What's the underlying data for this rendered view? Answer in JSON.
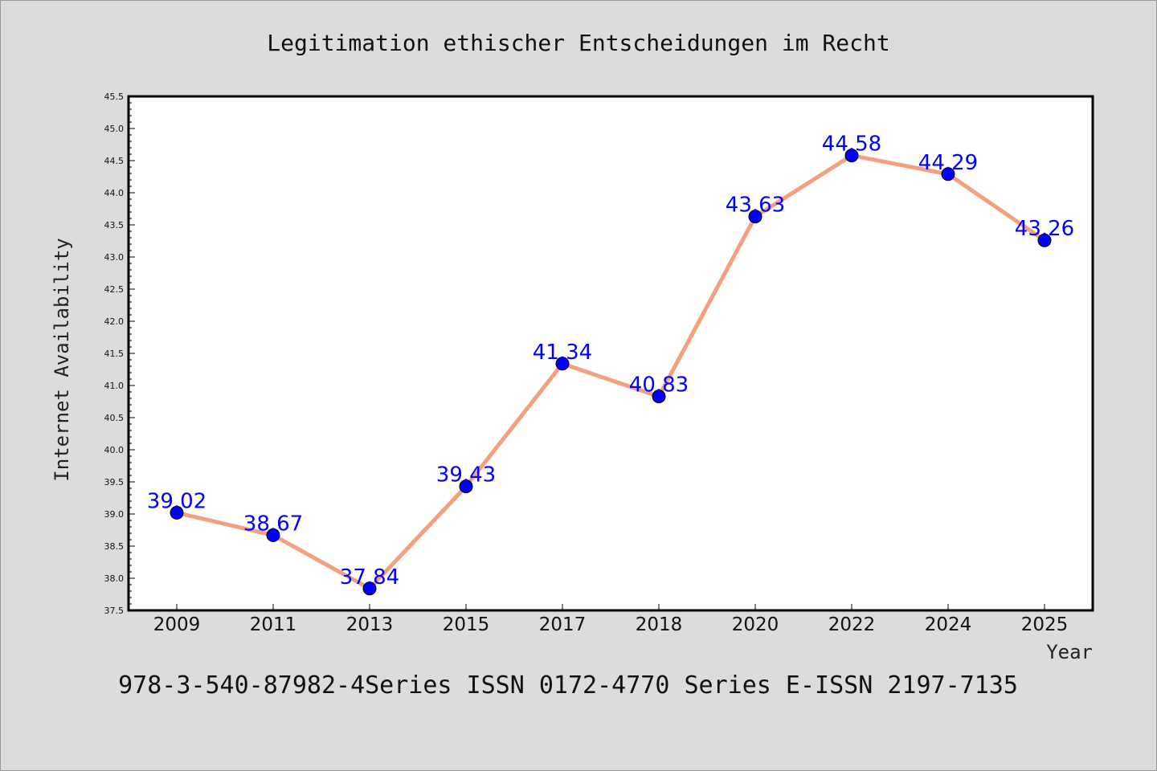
{
  "chart_data": {
    "type": "line",
    "title": "Legitimation ethischer Entscheidungen im Recht",
    "xlabel": "Year",
    "ylabel": "Internet Availability",
    "categories": [
      "2009",
      "2011",
      "2013",
      "2015",
      "2017",
      "2018",
      "2020",
      "2022",
      "2024",
      "2025"
    ],
    "series": [
      {
        "values": [
          39.02,
          38.67,
          37.84,
          39.43,
          41.34,
          40.83,
          43.63,
          44.58,
          44.29,
          43.26
        ]
      }
    ],
    "data_labels": [
      "39.02",
      "38.67",
      "37.84",
      "39.43",
      "41.34",
      "40.83",
      "43.63",
      "44.58",
      "44.29",
      "43.26"
    ],
    "ylim": [
      37.5,
      45.5
    ],
    "yticks": [
      "37.5",
      "38.0",
      "38.5",
      "39.0",
      "39.5",
      "40.0",
      "40.5",
      "41.0",
      "41.5",
      "42.0",
      "42.5",
      "43.0",
      "43.5",
      "44.0",
      "44.5",
      "45.0",
      "45.5"
    ],
    "grid": false,
    "legend": "none",
    "colors": {
      "line": "#f4a07e",
      "marker": "#0000ff",
      "label": "#0000ff",
      "background": "#dcdcdc",
      "plot_background": "#ffffff"
    }
  },
  "footer": "978-3-540-87982-4Series ISSN 0172-4770 Series E-ISSN 2197-7135"
}
